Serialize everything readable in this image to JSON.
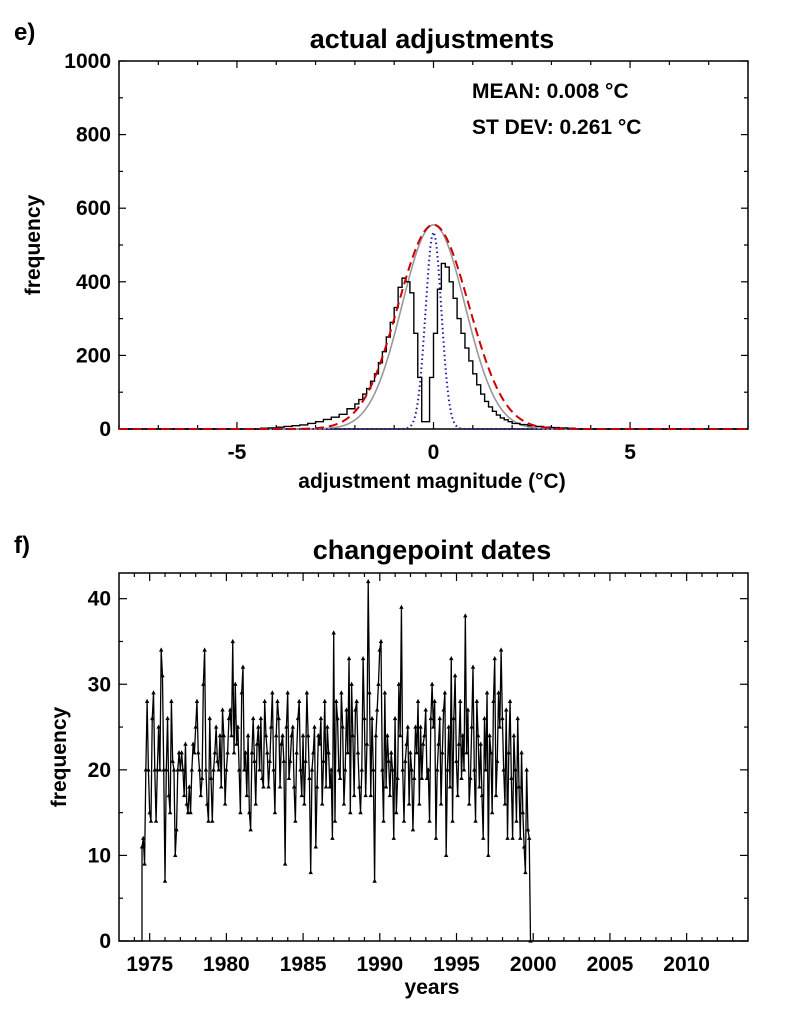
{
  "chart_data": [
    {
      "panel_label": "e)",
      "type": "histogram",
      "title": "actual adjustments",
      "xlabel": "adjustment magnitude (°C)",
      "ylabel": "frequency",
      "xlim": [
        -8,
        8
      ],
      "ylim": [
        0,
        1000
      ],
      "x_ticks": [
        -5,
        0,
        5
      ],
      "x_tick_labels": [
        "-5",
        "0",
        "5"
      ],
      "y_ticks": [
        0,
        200,
        400,
        600,
        800,
        1000
      ],
      "y_tick_labels": [
        "0",
        "200",
        "400",
        "600",
        "800",
        "1000"
      ],
      "stats": {
        "mean_text": "MEAN:  0.008 °C",
        "stdev_text": "ST DEV:  0.261 °C"
      },
      "colors": {
        "histogram": "#000000",
        "gaussian_fit": "#cc0000",
        "reference_curve": "#999999",
        "dotted_curve": "#1a1aa6"
      },
      "histogram": {
        "bin_edges": [
          -4.4,
          -4.2,
          -4.0,
          -3.8,
          -3.6,
          -3.4,
          -3.2,
          -3.0,
          -2.8,
          -2.6,
          -2.4,
          -2.2,
          -2.0,
          -1.9,
          -1.8,
          -1.7,
          -1.6,
          -1.5,
          -1.4,
          -1.3,
          -1.2,
          -1.1,
          -1.0,
          -0.9,
          -0.8,
          -0.7,
          -0.6,
          -0.5,
          -0.4,
          -0.3,
          -0.2,
          -0.1,
          0.0,
          0.1,
          0.2,
          0.3,
          0.4,
          0.5,
          0.6,
          0.7,
          0.8,
          0.9,
          1.0,
          1.1,
          1.2,
          1.3,
          1.4,
          1.5,
          1.6,
          1.7,
          1.8,
          1.9,
          2.0,
          2.2,
          2.4,
          2.6,
          2.8,
          3.0,
          3.2,
          3.4,
          3.6
        ],
        "counts": [
          2,
          3,
          5,
          7,
          9,
          11,
          15,
          20,
          26,
          32,
          40,
          55,
          68,
          80,
          95,
          110,
          130,
          150,
          180,
          210,
          250,
          290,
          330,
          385,
          410,
          400,
          370,
          260,
          140,
          20,
          20,
          140,
          260,
          380,
          450,
          440,
          400,
          355,
          300,
          260,
          220,
          185,
          150,
          120,
          95,
          75,
          60,
          48,
          38,
          30,
          25,
          20,
          15,
          12,
          9,
          7,
          5,
          4,
          3,
          2
        ]
      },
      "gaussian_fit": {
        "peak": 555,
        "center": 0.0,
        "sigma": 0.9
      },
      "reference_curve": {
        "peak": 555,
        "center": 0.0,
        "sigma": 0.8
      },
      "dotted_curve": {
        "peak": 535,
        "center": 0.0,
        "sigma": 0.2
      }
    },
    {
      "panel_label": "f)",
      "type": "line",
      "title": "changepoint dates",
      "xlabel": "years",
      "ylabel": "frequency",
      "xlim": [
        1973.0,
        2014.0
      ],
      "ylim": [
        0,
        43
      ],
      "x_ticks": [
        1975,
        1980,
        1985,
        1990,
        1995,
        2000,
        2005,
        2010
      ],
      "x_tick_labels": [
        "1975",
        "1980",
        "1985",
        "1990",
        "1995",
        "2000",
        "2005",
        "2010"
      ],
      "y_ticks": [
        0,
        10,
        20,
        30,
        40
      ],
      "y_tick_labels": [
        "0",
        "10",
        "20",
        "30",
        "40"
      ],
      "colors": {
        "series": "#000000"
      },
      "series_start": 1974.5,
      "series_step": 0.0833,
      "values": [
        11,
        12,
        9,
        20,
        28,
        20,
        15,
        14,
        26,
        29,
        20,
        14,
        20,
        25,
        20,
        34,
        31,
        20,
        7,
        20,
        26,
        17,
        15,
        28,
        21,
        20,
        10,
        13,
        20,
        22,
        20,
        22,
        20,
        17,
        23,
        16,
        15,
        18,
        15,
        20,
        23,
        22,
        25,
        28,
        22,
        20,
        17,
        19,
        30,
        34,
        20,
        16,
        14,
        26,
        19,
        14,
        20,
        22,
        25,
        21,
        20,
        24,
        18,
        27,
        24,
        16,
        20,
        22,
        26,
        27,
        24,
        35,
        22,
        30,
        23,
        25,
        20,
        15,
        29,
        32,
        20,
        22,
        17,
        24,
        15,
        13,
        22,
        26,
        21,
        16,
        23,
        25,
        20,
        26,
        19,
        18,
        28,
        24,
        22,
        18,
        21,
        25,
        29,
        20,
        15,
        24,
        28,
        26,
        18,
        23,
        24,
        21,
        9,
        25,
        29,
        19,
        21,
        24,
        25,
        18,
        14,
        22,
        26,
        28,
        20,
        17,
        24,
        16,
        21,
        29,
        24,
        19,
        8,
        20,
        22,
        25,
        11,
        18,
        24,
        23,
        26,
        16,
        21,
        28,
        18,
        25,
        22,
        18,
        20,
        12,
        36,
        14,
        28,
        26,
        20,
        19,
        29,
        25,
        16,
        20,
        27,
        22,
        33,
        15,
        30,
        24,
        17,
        27,
        28,
        22,
        18,
        15,
        20,
        33,
        26,
        17,
        23,
        42,
        29,
        17,
        26,
        20,
        7,
        24,
        27,
        30,
        34,
        35,
        20,
        14,
        29,
        18,
        24,
        21,
        17,
        22,
        20,
        12,
        26,
        15,
        19,
        30,
        24,
        39,
        20,
        14,
        21,
        23,
        25,
        16,
        22,
        20,
        13,
        19,
        25,
        22,
        28,
        16,
        25,
        19,
        23,
        24,
        27,
        19,
        20,
        14,
        26,
        30,
        25,
        28,
        12,
        20,
        23,
        26,
        16,
        22,
        27,
        29,
        10,
        20,
        25,
        18,
        33,
        14,
        26,
        31,
        21,
        17,
        23,
        28,
        19,
        24,
        20,
        38,
        22,
        27,
        16,
        19,
        25,
        32,
        20,
        14,
        28,
        24,
        18,
        23,
        17,
        12,
        26,
        20,
        29,
        10,
        24,
        22,
        15,
        28,
        33,
        17,
        21,
        29,
        25,
        34,
        26,
        20,
        16,
        27,
        12,
        22,
        28,
        19,
        12,
        24,
        20,
        14,
        26,
        18,
        12,
        22,
        15,
        11,
        8,
        20,
        13,
        12,
        0
      ]
    }
  ]
}
